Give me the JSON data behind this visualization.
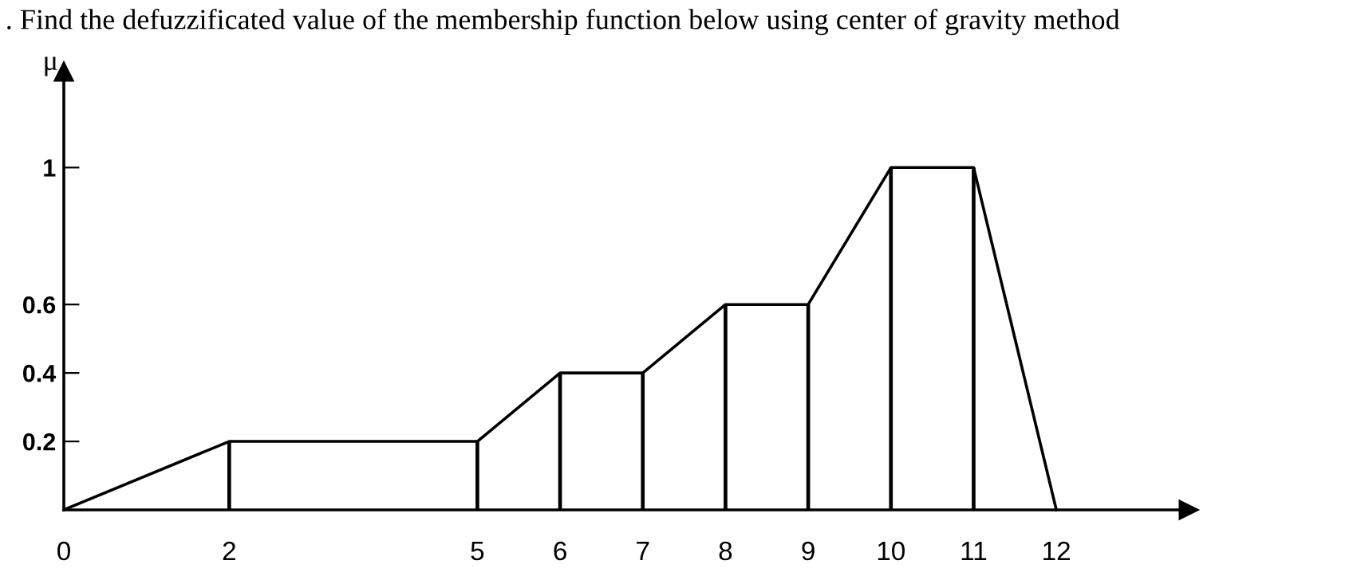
{
  "chart_data": {
    "type": "line",
    "title": ". Find the defuzzificated value of the membership function below using center of gravity method",
    "ylabel": "μ",
    "series": [
      {
        "color": "#000000",
        "x": [
          0,
          2,
          5,
          6,
          7,
          8,
          9,
          10,
          11,
          12
        ],
        "values": [
          0,
          0.2,
          0.2,
          0.4,
          0.4,
          0.6,
          0.6,
          1,
          1,
          0
        ]
      },
      {
        "type": "bar",
        "color": "#000000",
        "x": [
          2,
          5,
          6,
          7,
          8,
          9,
          10,
          11
        ],
        "values": [
          0.2,
          0.2,
          0.4,
          0.4,
          0.6,
          0.6,
          1,
          1
        ]
      }
    ],
    "xlim": [
      0,
      13.6
    ],
    "ylim": [
      0,
      1.28
    ],
    "xticks": [
      0,
      2,
      5,
      6,
      7,
      8,
      9,
      10,
      11,
      12
    ],
    "yticks": [
      0.2,
      0.4,
      0.6,
      1
    ],
    "grid": false,
    "legend": false,
    "marker": "none",
    "line_style": "solid"
  }
}
